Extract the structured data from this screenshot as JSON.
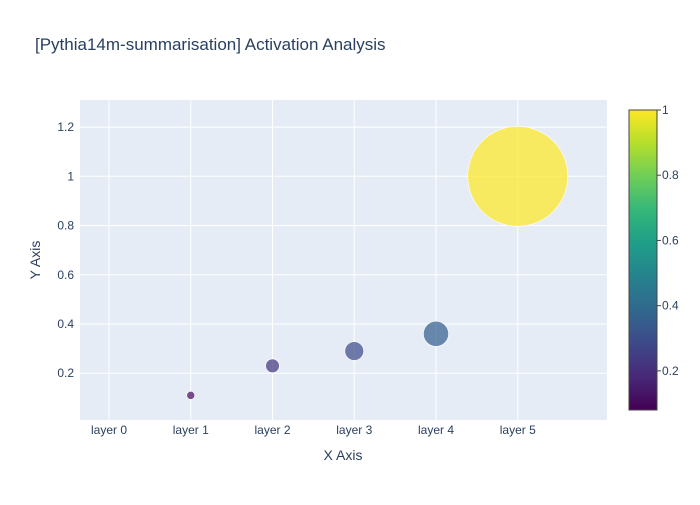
{
  "chart_data": {
    "type": "scatter",
    "title": "[Pythia14m-summarisation] Activation Analysis",
    "xlabel": "X Axis",
    "ylabel": "Y Axis",
    "categories": [
      "layer 0",
      "layer 1",
      "layer 2",
      "layer 3",
      "layer 4",
      "layer 5"
    ],
    "points": [
      {
        "x": "layer 1",
        "y": 0.11,
        "size": 0.11,
        "color_value": 0.11
      },
      {
        "x": "layer 2",
        "y": 0.23,
        "size": 0.23,
        "color_value": 0.23
      },
      {
        "x": "layer 3",
        "y": 0.29,
        "size": 0.29,
        "color_value": 0.29
      },
      {
        "x": "layer 4",
        "y": 0.36,
        "size": 0.36,
        "color_value": 0.36
      },
      {
        "x": "layer 5",
        "y": 1.0,
        "size": 1.0,
        "color_value": 1.0
      }
    ],
    "ylim": [
      0.01,
      1.31
    ],
    "yticks": [
      0.2,
      0.4,
      0.6,
      0.8,
      1,
      1.2
    ],
    "ytick_labels": [
      "0.2",
      "0.4",
      "0.6",
      "0.8",
      "1",
      "1.2"
    ],
    "grid": true,
    "colorscale": "viridis",
    "colorbar": {
      "range": [
        0.08,
        1.0
      ],
      "ticks": [
        0.2,
        0.4,
        0.6,
        0.8,
        1
      ],
      "tick_labels": [
        "0.2",
        "0.4",
        "0.6",
        "0.8",
        "1"
      ]
    }
  },
  "colors": {
    "plot_background": "#e5ecf6",
    "grid": "#ffffff",
    "text": "#2a3f5f",
    "viridis": [
      "#440154",
      "#482878",
      "#3e4989",
      "#31688e",
      "#26828e",
      "#1f9e89",
      "#35b779",
      "#6ece58",
      "#b5de2b",
      "#fde725"
    ]
  }
}
